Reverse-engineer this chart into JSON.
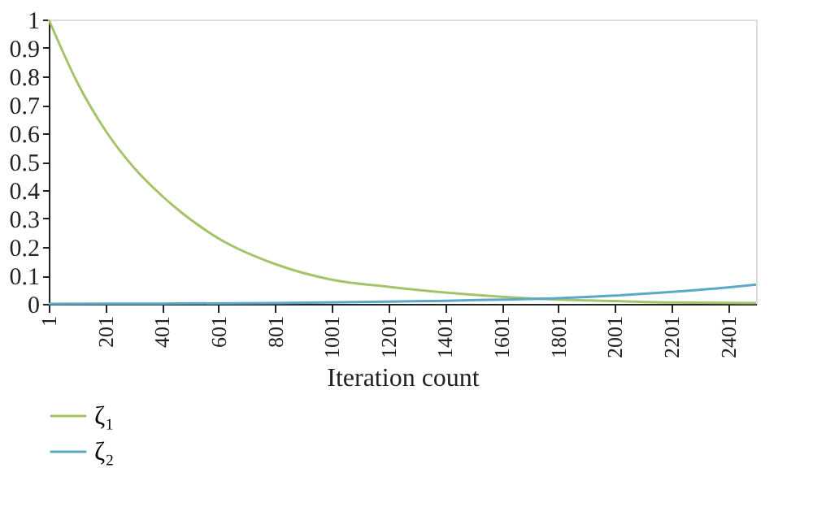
{
  "chart_data": {
    "type": "line",
    "xlabel": "Iteration count",
    "xlim": [
      1,
      2500
    ],
    "xticks": [
      1,
      201,
      401,
      601,
      801,
      1001,
      1201,
      1401,
      1601,
      1801,
      2001,
      2201,
      2401
    ],
    "ylim": [
      0,
      1
    ],
    "yticks": [
      0,
      0.1,
      0.2,
      0.3,
      0.4,
      0.5,
      0.6,
      0.7,
      0.8,
      0.9,
      1
    ],
    "grid": false,
    "legend": "bottom left",
    "marker": "none",
    "line_style": "solid",
    "series": [
      {
        "name": "ζ₁",
        "color": "#a5c46a",
        "x": [
          1,
          101,
          201,
          301,
          401,
          601,
          801,
          1001,
          1201,
          1401,
          1601,
          1801,
          2001,
          2201,
          2500
        ],
        "values": [
          1,
          0.78,
          0.61,
          0.48,
          0.38,
          0.23,
          0.14,
          0.085,
          0.06,
          0.04,
          0.025,
          0.015,
          0.01,
          0.005,
          0.003
        ]
      },
      {
        "name": "ζ₂",
        "color": "#5ba8c8",
        "x": [
          1,
          401,
          801,
          1201,
          1401,
          1601,
          1801,
          2001,
          2201,
          2401,
          2500
        ],
        "values": [
          0,
          0.001,
          0.003,
          0.008,
          0.011,
          0.015,
          0.02,
          0.029,
          0.042,
          0.058,
          0.068
        ]
      }
    ]
  }
}
